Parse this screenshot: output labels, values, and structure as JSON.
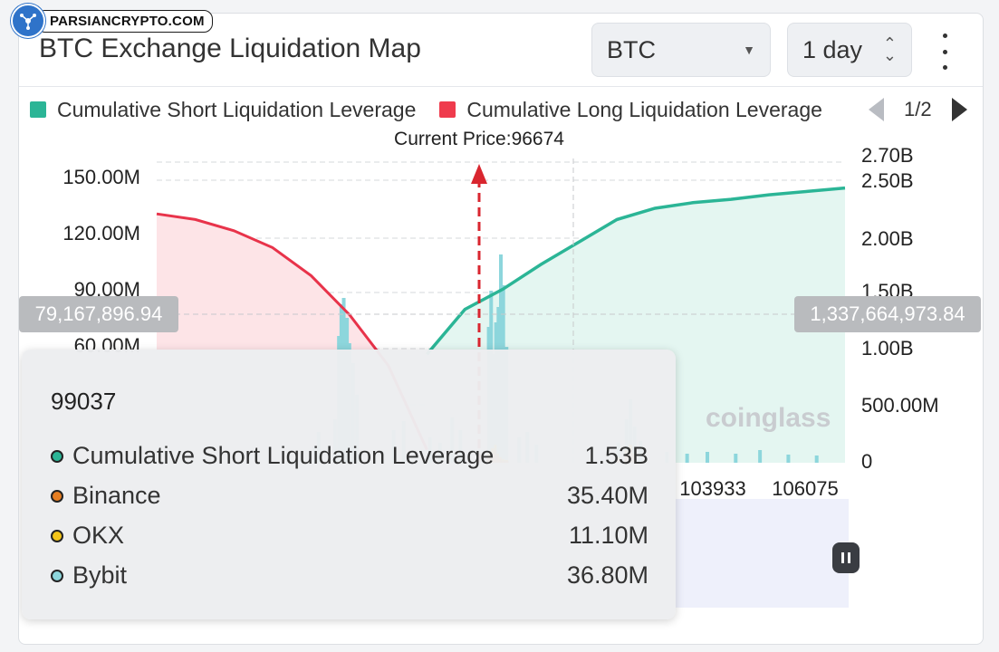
{
  "brand": {
    "text": "PARSIANCRYPTO.COM"
  },
  "header": {
    "title": "BTC Exchange Liquidation Map",
    "coin_select": "BTC",
    "range_select": "1 day"
  },
  "legend": {
    "items": [
      {
        "label": "Cumulative Short Liquidation Leverage",
        "color": "#2bb596"
      },
      {
        "label": "Cumulative Long Liquidation Leverage",
        "color": "#ef3b4d"
      }
    ],
    "page": "1/2"
  },
  "colors": {
    "short_line": "#2bb596",
    "short_fill": "#e4f6f1",
    "long_line": "#e8334a",
    "long_fill": "#fde4e7",
    "binance": "#e67e22",
    "okx": "#f5c518",
    "bybit": "#8dd6dc",
    "current_price": "#d9262f"
  },
  "chart_data": {
    "type": "bar",
    "current_price_label": "Current Price:96674",
    "current_price": 96674,
    "left_axis": {
      "ticks": [
        "150.00M",
        "120.00M",
        "90.00M",
        "60.00M"
      ],
      "values": [
        150000000,
        120000000,
        90000000,
        60000000
      ]
    },
    "right_axis": {
      "ticks": [
        "2.70B",
        "2.50B",
        "2.00B",
        "1.50B",
        "1.00B",
        "500.00M",
        "0"
      ],
      "values": [
        2700000000,
        2500000000,
        2000000000,
        1500000000,
        1000000000,
        500000000,
        0
      ]
    },
    "x_ticks": [
      "103933",
      "106075"
    ],
    "crosshair": {
      "left_value": "79,167,896.94",
      "right_value": "1,337,664,973.84"
    },
    "series": [
      {
        "name": "Cumulative Short Liquidation Leverage",
        "kind": "cumulative",
        "x_from": 96674,
        "x_to": 107000,
        "values_B": [
          0.95,
          1.35,
          1.53,
          1.75,
          1.95,
          2.15,
          2.25,
          2.3,
          2.33,
          2.37,
          2.4,
          2.43
        ]
      },
      {
        "name": "Cumulative Long Liquidation Leverage",
        "kind": "cumulative",
        "x_from": 90000,
        "x_to": 96674,
        "values_B": [
          2.2,
          2.15,
          2.05,
          1.9,
          1.65,
          1.3,
          0.85,
          0.1
        ]
      },
      {
        "name": "Binance",
        "kind": "bars"
      },
      {
        "name": "OKX",
        "kind": "bars"
      },
      {
        "name": "Bybit",
        "kind": "bars"
      }
    ]
  },
  "tooltip": {
    "title": "99037",
    "rows": [
      {
        "label": "Cumulative Short Liquidation Leverage",
        "value": "1.53B",
        "color": "#2bb596"
      },
      {
        "label": "Binance",
        "value": "35.40M",
        "color": "#e67e22"
      },
      {
        "label": "OKX",
        "value": "11.10M",
        "color": "#f5c518"
      },
      {
        "label": "Bybit",
        "value": "36.80M",
        "color": "#8dd6dc"
      }
    ]
  },
  "watermark": "coinglass"
}
